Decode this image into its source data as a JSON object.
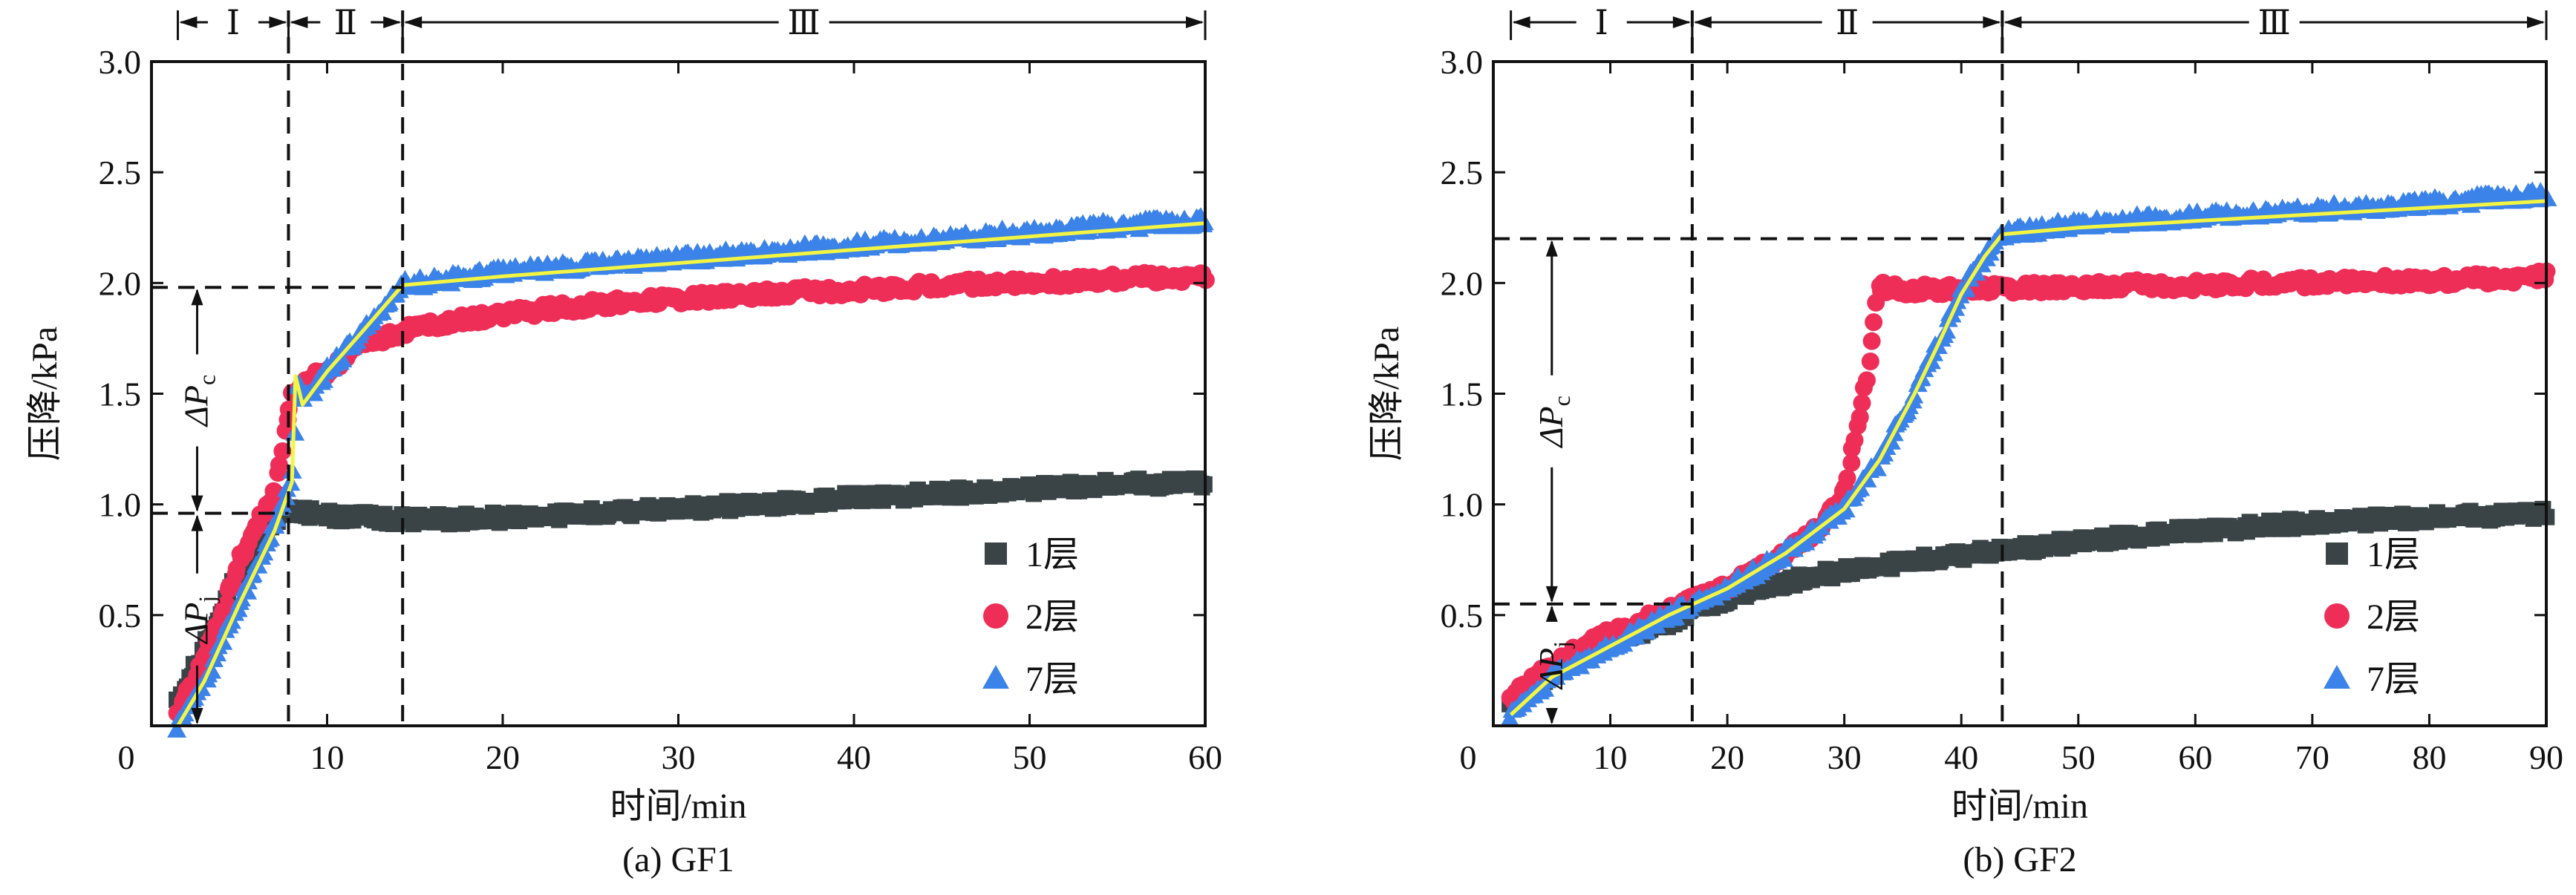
{
  "chart_data": [
    {
      "type": "scatter",
      "caption": "(a) GF1",
      "xlabel": "时间/min",
      "ylabel": "压降/kPa",
      "xlim": [
        0,
        60
      ],
      "ylim": [
        0,
        3.0
      ],
      "xticks": [
        0,
        10,
        20,
        30,
        40,
        50,
        60
      ],
      "yticks": [
        0.5,
        1.0,
        1.5,
        2.0,
        2.5,
        3.0
      ],
      "ytick_labels": [
        "0.5",
        "1.0",
        "1.5",
        "2.0",
        "2.5",
        "3.0"
      ],
      "origin_label": "0",
      "grid": false,
      "legend": {
        "position": "bottom-right",
        "entries": [
          "1层",
          "2层",
          "7层"
        ]
      },
      "stages": [
        {
          "label": "Ⅰ",
          "x_start": 1.5,
          "x_end": 7.8
        },
        {
          "label": "Ⅱ",
          "x_start": 7.8,
          "x_end": 14.3
        },
        {
          "label": "Ⅲ",
          "x_start": 14.3,
          "x_end": 60
        }
      ],
      "vlines": [
        7.8,
        14.3
      ],
      "hlines": [
        {
          "y": 0.96,
          "x_end": 7.8
        },
        {
          "y": 1.98,
          "x_end": 14.3
        }
      ],
      "annotations": [
        {
          "label": "ΔPj",
          "x": 2.6,
          "y_from": 0,
          "y_to": 0.96
        },
        {
          "label": "ΔPc",
          "x": 2.6,
          "y_from": 0.96,
          "y_to": 1.98
        }
      ],
      "series": [
        {
          "name": "1层",
          "marker": "square",
          "color": "#3a4446",
          "x": [
            1.5,
            3,
            5,
            7,
            8,
            10,
            15,
            20,
            25,
            30,
            35,
            40,
            45,
            50,
            55,
            60
          ],
          "y": [
            0.1,
            0.35,
            0.7,
            0.92,
            0.97,
            0.95,
            0.93,
            0.94,
            0.96,
            0.98,
            1.0,
            1.03,
            1.05,
            1.07,
            1.09,
            1.1
          ]
        },
        {
          "name": "2层",
          "marker": "circle",
          "color": "#ef2e58",
          "x": [
            1.5,
            3,
            5,
            7,
            8,
            8.5,
            10,
            12,
            15,
            20,
            25,
            30,
            35,
            40,
            45,
            50,
            55,
            60
          ],
          "y": [
            0.05,
            0.3,
            0.75,
            1.05,
            1.5,
            1.55,
            1.6,
            1.72,
            1.8,
            1.86,
            1.9,
            1.93,
            1.95,
            1.97,
            1.99,
            2.0,
            2.02,
            2.03
          ]
        },
        {
          "name": "7层",
          "marker": "triangle",
          "color": "#3b83e8",
          "x": [
            1.5,
            3,
            5,
            7,
            8,
            8.3,
            8.8,
            10,
            12,
            14.3,
            20,
            25,
            30,
            35,
            40,
            45,
            50,
            55,
            60
          ],
          "y": [
            0,
            0.2,
            0.55,
            0.9,
            1.15,
            1.55,
            1.48,
            1.6,
            1.78,
            1.99,
            2.05,
            2.08,
            2.11,
            2.14,
            2.17,
            2.2,
            2.23,
            2.26,
            2.28
          ]
        }
      ],
      "fit_line": {
        "color": "#f2f542",
        "x": [
          1.5,
          3,
          5,
          7,
          8,
          8.2,
          8.6,
          10,
          12,
          14.3,
          20,
          30,
          40,
          50,
          60
        ],
        "y": [
          0,
          0.2,
          0.55,
          0.88,
          1.1,
          1.58,
          1.45,
          1.6,
          1.78,
          1.99,
          2.03,
          2.09,
          2.15,
          2.21,
          2.27
        ]
      }
    },
    {
      "type": "scatter",
      "caption": "(b) GF2",
      "xlabel": "时间/min",
      "ylabel": "压降/kPa",
      "xlim": [
        0,
        90
      ],
      "ylim": [
        0,
        3.0
      ],
      "xticks": [
        0,
        10,
        20,
        30,
        40,
        50,
        60,
        70,
        80,
        90
      ],
      "yticks": [
        0.5,
        1.0,
        1.5,
        2.0,
        2.5,
        3.0
      ],
      "ytick_labels": [
        "0.5",
        "1.0",
        "1.5",
        "2.0",
        "2.5",
        "3.0"
      ],
      "origin_label": "0",
      "grid": false,
      "legend": {
        "position": "bottom-right",
        "entries": [
          "1层",
          "2层",
          "7层"
        ]
      },
      "stages": [
        {
          "label": "Ⅰ",
          "x_start": 1.5,
          "x_end": 17
        },
        {
          "label": "Ⅱ",
          "x_start": 17,
          "x_end": 43.5
        },
        {
          "label": "Ⅲ",
          "x_start": 43.5,
          "x_end": 90
        }
      ],
      "vlines": [
        17,
        43.5
      ],
      "hlines": [
        {
          "y": 0.55,
          "x_end": 17
        },
        {
          "y": 2.2,
          "x_end": 43.5
        }
      ],
      "annotations": [
        {
          "label": "ΔPj",
          "x": 5,
          "y_from": 0,
          "y_to": 0.55
        },
        {
          "label": "ΔPc",
          "x": 5,
          "y_from": 0.55,
          "y_to": 2.2
        }
      ],
      "series": [
        {
          "name": "1层",
          "marker": "square",
          "color": "#3a4446",
          "x": [
            1.5,
            5,
            10,
            15,
            20,
            25,
            30,
            35,
            40,
            45,
            50,
            55,
            60,
            65,
            70,
            75,
            80,
            85,
            90
          ],
          "y": [
            0.08,
            0.25,
            0.38,
            0.47,
            0.58,
            0.65,
            0.7,
            0.74,
            0.77,
            0.8,
            0.83,
            0.86,
            0.88,
            0.9,
            0.92,
            0.93,
            0.94,
            0.95,
            0.96
          ]
        },
        {
          "name": "2层",
          "marker": "circle",
          "color": "#ef2e58",
          "x": [
            1.5,
            5,
            10,
            15,
            20,
            25,
            28,
            30,
            31,
            32,
            33,
            35,
            40,
            45,
            50,
            55,
            60,
            65,
            70,
            75,
            80,
            85,
            90
          ],
          "y": [
            0.12,
            0.28,
            0.42,
            0.52,
            0.63,
            0.78,
            0.9,
            1.05,
            1.3,
            1.6,
            1.98,
            1.97,
            1.97,
            1.98,
            1.98,
            1.99,
            1.99,
            2.0,
            2.0,
            2.01,
            2.01,
            2.02,
            2.03
          ]
        },
        {
          "name": "7层",
          "marker": "triangle",
          "color": "#3b83e8",
          "x": [
            1.5,
            5,
            10,
            15,
            20,
            25,
            30,
            33,
            36,
            38,
            40,
            42,
            43.5,
            50,
            60,
            70,
            80,
            90
          ],
          "y": [
            0.05,
            0.22,
            0.36,
            0.5,
            0.62,
            0.78,
            0.98,
            1.2,
            1.5,
            1.72,
            1.95,
            2.12,
            2.22,
            2.27,
            2.3,
            2.33,
            2.36,
            2.4
          ]
        }
      ],
      "fit_line": {
        "color": "#f2f542",
        "x": [
          1.5,
          5,
          10,
          15,
          20,
          25,
          30,
          33,
          36,
          38,
          40,
          42,
          43.5,
          50,
          60,
          70,
          80,
          90
        ],
        "y": [
          0.05,
          0.22,
          0.36,
          0.5,
          0.62,
          0.78,
          0.98,
          1.2,
          1.5,
          1.72,
          1.95,
          2.12,
          2.22,
          2.25,
          2.28,
          2.31,
          2.34,
          2.37
        ]
      }
    }
  ]
}
